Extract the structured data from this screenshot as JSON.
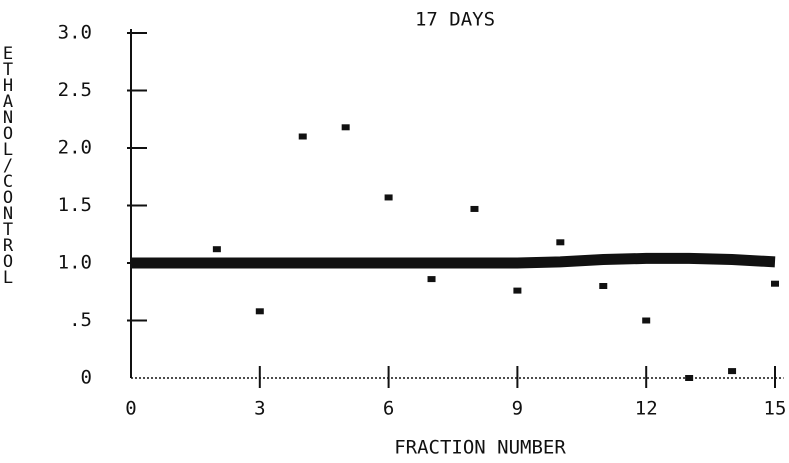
{
  "chart_data": {
    "type": "scatter",
    "title": "17 DAYS",
    "xlabel": "FRACTION NUMBER",
    "ylabel": "ETHANOL/CONTROL",
    "x": [
      2,
      3,
      4,
      5,
      6,
      7,
      8,
      9,
      10,
      11,
      12,
      13,
      14,
      15
    ],
    "values": [
      1.12,
      0.58,
      2.1,
      2.18,
      1.57,
      0.86,
      1.47,
      0.76,
      1.18,
      0.8,
      0.5,
      0.0,
      0.06,
      0.82
    ],
    "color": "#111111",
    "line_x": [
      0,
      3,
      6,
      9,
      10,
      11,
      12,
      13,
      14,
      15
    ],
    "line_values": [
      1.0,
      1.0,
      1.0,
      1.0,
      1.01,
      1.03,
      1.04,
      1.04,
      1.03,
      1.01
    ],
    "xlim": [
      0,
      15.2
    ],
    "ylim": [
      0,
      3.0
    ],
    "xticks": [
      0,
      3,
      6,
      9,
      12,
      15
    ],
    "yticks": [
      0,
      {
        "value": 0.5,
        "label": ".5"
      },
      {
        "value": 1,
        "label": "1.0"
      },
      1.5,
      {
        "value": 2,
        "label": "2.0"
      },
      2.5,
      {
        "value": 3,
        "label": "3.0"
      }
    ]
  }
}
